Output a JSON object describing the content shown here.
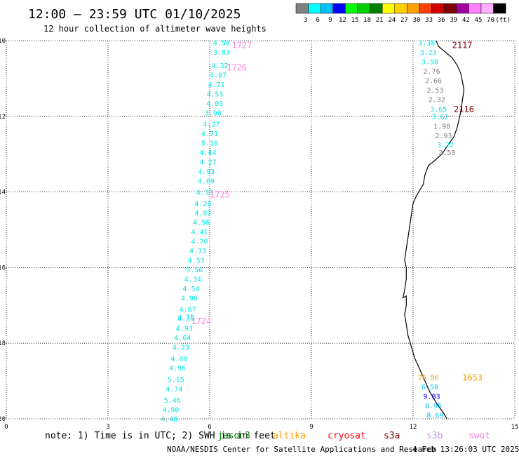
{
  "header": {
    "title": "12:00 — 23:59 UTC 01/10/2025",
    "subtitle": "12 hour collection of altimeter wave heights"
  },
  "legend": {
    "colors": [
      "#808080",
      "#00ffff",
      "#00bfff",
      "#0000ff",
      "#00ff00",
      "#00d000",
      "#008000",
      "#ffff00",
      "#ffd000",
      "#ffa000",
      "#ff4000",
      "#d00000",
      "#800000",
      "#a000a0",
      "#ff80ff",
      "#ffb0ff",
      "#000000"
    ],
    "labels": [
      "3",
      "6",
      "9",
      "12",
      "15",
      "18",
      "21",
      "24",
      "27",
      "30",
      "33",
      "36",
      "39",
      "42",
      "45",
      "70",
      "(ft)"
    ]
  },
  "axes": {
    "lon_ticks": [
      "0",
      "3",
      "6",
      "9",
      "12",
      "15"
    ],
    "lat_ticks": [
      "-10",
      "-12",
      "-14",
      "-16",
      "-18",
      "-20"
    ]
  },
  "tracks": [
    {
      "id": "1724-1727",
      "color": "#00e5e5",
      "points": [
        {
          "lon": 6.35,
          "lat": -10.05,
          "v": "4.58"
        },
        {
          "lon": 6.35,
          "lat": -10.3,
          "v": "3.83"
        },
        {
          "lon": 6.3,
          "lat": -10.65,
          "v": "4.32"
        },
        {
          "lon": 6.25,
          "lat": -10.9,
          "v": "4.07"
        },
        {
          "lon": 6.2,
          "lat": -11.15,
          "v": "4.71"
        },
        {
          "lon": 6.15,
          "lat": -11.4,
          "v": "4.53"
        },
        {
          "lon": 6.15,
          "lat": -11.65,
          "v": "4.03"
        },
        {
          "lon": 6.1,
          "lat": -11.9,
          "v": "3.96"
        },
        {
          "lon": 6.05,
          "lat": -12.2,
          "v": "4.27"
        },
        {
          "lon": 6.0,
          "lat": -12.45,
          "v": "4.71"
        },
        {
          "lon": 6.0,
          "lat": -12.7,
          "v": "5.10"
        },
        {
          "lon": 5.95,
          "lat": -12.95,
          "v": "4.44"
        },
        {
          "lon": 5.95,
          "lat": -13.2,
          "v": "4.27"
        },
        {
          "lon": 5.9,
          "lat": -13.45,
          "v": "4.93"
        },
        {
          "lon": 5.9,
          "lat": -13.7,
          "v": "4.09"
        },
        {
          "lon": 5.85,
          "lat": -14.0,
          "v": "4.33"
        },
        {
          "lon": 5.8,
          "lat": -14.3,
          "v": "4.28"
        },
        {
          "lon": 5.8,
          "lat": -14.55,
          "v": "4.82"
        },
        {
          "lon": 5.75,
          "lat": -14.8,
          "v": "4.56"
        },
        {
          "lon": 5.7,
          "lat": -15.05,
          "v": "4.41"
        },
        {
          "lon": 5.7,
          "lat": -15.3,
          "v": "4.70"
        },
        {
          "lon": 5.65,
          "lat": -15.55,
          "v": "4.33"
        },
        {
          "lon": 5.6,
          "lat": -15.8,
          "v": "4.53"
        },
        {
          "lon": 5.55,
          "lat": -16.05,
          "v": "5.56"
        },
        {
          "lon": 5.5,
          "lat": -16.3,
          "v": "4.34"
        },
        {
          "lon": 5.45,
          "lat": -16.55,
          "v": "4.54"
        },
        {
          "lon": 5.4,
          "lat": -16.8,
          "v": "4.96"
        },
        {
          "lon": 5.35,
          "lat": -17.1,
          "v": "4.87"
        },
        {
          "lon": 5.3,
          "lat": -17.3,
          "v": "4.75"
        },
        {
          "lon": 5.3,
          "lat": -17.35,
          "v": "4.39"
        },
        {
          "lon": 5.25,
          "lat": -17.6,
          "v": "4.93"
        },
        {
          "lon": 5.2,
          "lat": -17.85,
          "v": "4.64"
        },
        {
          "lon": 5.15,
          "lat": -18.1,
          "v": "4.23"
        },
        {
          "lon": 5.1,
          "lat": -18.4,
          "v": "4.60"
        },
        {
          "lon": 5.05,
          "lat": -18.65,
          "v": "4.96"
        },
        {
          "lon": 5.0,
          "lat": -18.95,
          "v": "5.15"
        },
        {
          "lon": 4.95,
          "lat": -19.2,
          "v": "4.74"
        },
        {
          "lon": 4.9,
          "lat": -19.5,
          "v": "5.46"
        },
        {
          "lon": 4.85,
          "lat": -19.75,
          "v": "4.90"
        },
        {
          "lon": 4.8,
          "lat": -20.0,
          "v": "4.48"
        }
      ],
      "passes": [
        {
          "label": "1727",
          "lon": 6.95,
          "lat": -10.1
        },
        {
          "label": "1726",
          "lon": 6.8,
          "lat": -10.7
        },
        {
          "label": "1725",
          "lon": 6.3,
          "lat": -14.05
        },
        {
          "label": "1724",
          "lon": 5.75,
          "lat": -17.4
        }
      ],
      "pass_color": "#ff80e0"
    },
    {
      "id": "2116-2117",
      "color": "#00e5e5",
      "points": [
        {
          "lon": 12.4,
          "lat": -10.05,
          "v": "3.38",
          "c": "#00e5e5"
        },
        {
          "lon": 12.45,
          "lat": -10.3,
          "v": "3.23",
          "c": "#00e5e5"
        },
        {
          "lon": 12.5,
          "lat": -10.55,
          "v": "3.50",
          "c": "#00e5e5"
        },
        {
          "lon": 12.55,
          "lat": -10.8,
          "v": "2.76",
          "c": "#808080"
        },
        {
          "lon": 12.6,
          "lat": -11.05,
          "v": "2.66",
          "c": "#808080"
        },
        {
          "lon": 12.65,
          "lat": -11.3,
          "v": "2.53",
          "c": "#808080"
        },
        {
          "lon": 12.7,
          "lat": -11.55,
          "v": "2.32",
          "c": "#808080"
        },
        {
          "lon": 12.75,
          "lat": -11.8,
          "v": "3.65",
          "c": "#00e5e5"
        },
        {
          "lon": 12.8,
          "lat": -12.0,
          "v": "3.62",
          "c": "#00e5e5"
        },
        {
          "lon": 12.85,
          "lat": -12.25,
          "v": "1.98",
          "c": "#808080"
        },
        {
          "lon": 12.9,
          "lat": -12.5,
          "v": "2.93",
          "c": "#808080"
        },
        {
          "lon": 12.95,
          "lat": -12.75,
          "v": "3.22",
          "c": "#00e5e5"
        },
        {
          "lon": 13.0,
          "lat": -12.95,
          "v": "2.58",
          "c": "#808080"
        }
      ],
      "passes": [
        {
          "label": "2117",
          "lon": 13.45,
          "lat": -10.1
        },
        {
          "label": "2116",
          "lon": 13.5,
          "lat": -11.8
        }
      ],
      "pass_color": "#800000"
    },
    {
      "id": "1653",
      "color": "#00e5e5",
      "points": [
        {
          "lon": 12.45,
          "lat": -18.9,
          "v": "29.86",
          "c": "#ffa000"
        },
        {
          "lon": 12.5,
          "lat": -19.15,
          "v": "6.50",
          "c": "#00bfff"
        },
        {
          "lon": 12.55,
          "lat": -19.4,
          "v": "9.83",
          "c": "#0000ff"
        },
        {
          "lon": 12.6,
          "lat": -19.65,
          "v": "8.95",
          "c": "#00bfff"
        },
        {
          "lon": 12.65,
          "lat": -19.9,
          "v": "8.69",
          "c": "#00bfff"
        }
      ],
      "passes": [
        {
          "label": "1653",
          "lon": 13.75,
          "lat": -18.9
        }
      ],
      "pass_color": "#ffa000"
    }
  ],
  "coastline": [
    [
      12.68,
      -10.0
    ],
    [
      12.75,
      -10.15
    ],
    [
      12.95,
      -10.3
    ],
    [
      13.15,
      -10.45
    ],
    [
      13.3,
      -10.65
    ],
    [
      13.4,
      -10.85
    ],
    [
      13.45,
      -11.05
    ],
    [
      13.5,
      -11.3
    ],
    [
      13.45,
      -11.6
    ],
    [
      13.4,
      -11.9
    ],
    [
      13.35,
      -12.1
    ],
    [
      13.3,
      -12.3
    ],
    [
      13.2,
      -12.55
    ],
    [
      13.0,
      -12.8
    ],
    [
      12.85,
      -13.0
    ],
    [
      12.6,
      -13.2
    ],
    [
      12.45,
      -13.3
    ],
    [
      12.35,
      -13.55
    ],
    [
      12.3,
      -13.8
    ],
    [
      12.2,
      -13.95
    ],
    [
      12.1,
      -14.1
    ],
    [
      12.0,
      -14.3
    ],
    [
      11.95,
      -14.6
    ],
    [
      11.9,
      -14.9
    ],
    [
      11.85,
      -15.2
    ],
    [
      11.8,
      -15.5
    ],
    [
      11.75,
      -15.8
    ],
    [
      11.8,
      -16.0
    ],
    [
      11.8,
      -16.3
    ],
    [
      11.75,
      -16.6
    ],
    [
      11.7,
      -16.8
    ],
    [
      11.8,
      -16.75
    ],
    [
      11.8,
      -17.0
    ],
    [
      11.75,
      -17.25
    ],
    [
      11.8,
      -17.5
    ],
    [
      11.85,
      -17.8
    ],
    [
      11.95,
      -18.1
    ],
    [
      12.05,
      -18.4
    ],
    [
      12.2,
      -18.7
    ],
    [
      12.35,
      -19.0
    ],
    [
      12.5,
      -19.3
    ],
    [
      12.7,
      -19.6
    ],
    [
      12.9,
      -19.85
    ],
    [
      13.0,
      -20.0
    ]
  ],
  "footer": {
    "note": "note: 1) Time is in UTC; 2) SWH is in feet",
    "satellites": [
      {
        "name": "jason3",
        "color": "#008000"
      },
      {
        "name": "altika",
        "color": "#ffa000"
      },
      {
        "name": "cryosat",
        "color": "#ff0000"
      },
      {
        "name": "s3a",
        "color": "#800000"
      },
      {
        "name": "s3b",
        "color": "#c0a0e0"
      },
      {
        "name": "swot",
        "color": "#ff80e0"
      }
    ],
    "credit": "NOAA/NESDIS Center for Satellite Applications and Research",
    "timestamp": "4 Feb 13:26:03 UTC 2025"
  }
}
